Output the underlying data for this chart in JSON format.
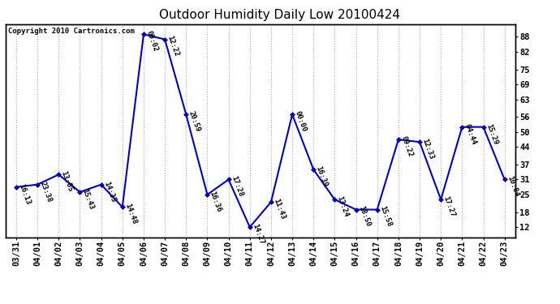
{
  "title": "Outdoor Humidity Daily Low 20100424",
  "copyright": "Copyright 2010 Cartronics.com",
  "x_labels": [
    "03/31",
    "04/01",
    "04/02",
    "04/03",
    "04/04",
    "04/05",
    "04/06",
    "04/07",
    "04/08",
    "04/09",
    "04/10",
    "04/11",
    "04/12",
    "04/13",
    "04/14",
    "04/15",
    "04/16",
    "04/17",
    "04/18",
    "04/19",
    "04/20",
    "04/21",
    "04/22",
    "04/23"
  ],
  "y_values": [
    28,
    29,
    33,
    26,
    29,
    20,
    89,
    87,
    57,
    25,
    31,
    12,
    22,
    57,
    35,
    23,
    19,
    19,
    47,
    46,
    23,
    52,
    52,
    31
  ],
  "time_labels": [
    "16:13",
    "23:38",
    "13:05",
    "15:43",
    "14:35",
    "14:48",
    "00:02",
    "12:22",
    "20:59",
    "16:36",
    "17:28",
    "14:27",
    "11:43",
    "00:00",
    "16:39",
    "13:24",
    "18:50",
    "15:58",
    "09:22",
    "12:33",
    "17:27",
    "04:44",
    "15:29",
    "10:04"
  ],
  "line_color": "#0000cc",
  "marker_color": "#0000cc",
  "bg_color": "#ffffff",
  "grid_color": "#aaaaaa",
  "title_fontsize": 11,
  "copyright_fontsize": 6.5,
  "label_fontsize": 6.5,
  "tick_fontsize": 7.5,
  "y_ticks_right": [
    12,
    18,
    25,
    31,
    37,
    44,
    50,
    56,
    63,
    69,
    75,
    82,
    88
  ],
  "ylim": [
    8,
    93
  ],
  "xlim": [
    -0.5,
    23.5
  ]
}
